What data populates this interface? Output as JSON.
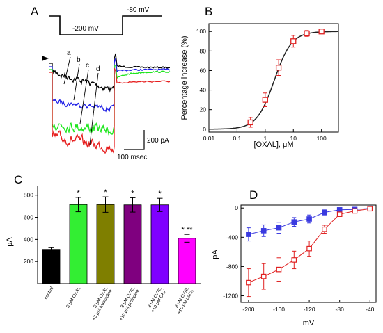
{
  "chart_data": [
    {
      "panel": "A",
      "type": "line",
      "protocol": {
        "step_voltage": "-200 mV",
        "return_voltage": "-80 mV"
      },
      "trace_labels": [
        "a",
        "b",
        "c",
        "d"
      ],
      "scale_bar": {
        "current": "200 pA",
        "time": "100 msec"
      },
      "colors": {
        "a": "#000000",
        "b": "#1e1ee6",
        "c": "#1ee61e",
        "d": "#e61e1e"
      }
    },
    {
      "panel": "B",
      "type": "line",
      "xlabel": "[OXAL], μM",
      "ylabel": "Percentage increase (%)",
      "x_scale": "log",
      "xlim": [
        0.01,
        400
      ],
      "ylim": [
        -3,
        108
      ],
      "xticks": [
        "0.01",
        "0.1",
        "1",
        "10",
        "100"
      ],
      "yticks": [
        0,
        20,
        40,
        60,
        80,
        100
      ],
      "points": [
        {
          "x": 0.3,
          "y": 7,
          "err": 5
        },
        {
          "x": 1,
          "y": 30,
          "err": 7
        },
        {
          "x": 3,
          "y": 63,
          "err": 8
        },
        {
          "x": 10,
          "y": 90,
          "err": 6
        },
        {
          "x": 30,
          "y": 98,
          "err": 3
        },
        {
          "x": 100,
          "y": 100,
          "err": 1
        }
      ],
      "fit": {
        "ec50": 2.1,
        "hill": 1.4,
        "max": 100
      },
      "marker_color": "#e02020"
    },
    {
      "panel": "C",
      "type": "bar",
      "ylabel": "pA",
      "ylim": [
        0,
        880
      ],
      "yticks": [
        200,
        400,
        600,
        800
      ],
      "categories": [
        {
          "lines": [
            "control"
          ],
          "value": 310,
          "err": 15,
          "color": "#000000",
          "sig": ""
        },
        {
          "lines": [
            "3 μM OXAL"
          ],
          "value": 715,
          "err": 65,
          "color": "#33ee33",
          "sig": "*"
        },
        {
          "lines": [
            "3 μM OXAL",
            "+3 μM ivabradine"
          ],
          "value": 715,
          "err": 70,
          "color": "#7f7f00",
          "sig": "*"
        },
        {
          "lines": [
            "3 μM OXAL",
            "+10 μM prolopine"
          ],
          "value": 712,
          "err": 65,
          "color": "#7f007f",
          "sig": "*"
        },
        {
          "lines": [
            "3 μM OXAL",
            "+10 μM DEX"
          ],
          "value": 712,
          "err": 60,
          "color": "#7f00ff",
          "sig": "*"
        },
        {
          "lines": [
            "3 μM OXAL",
            "+10 μM LaCl₃"
          ],
          "value": 410,
          "err": 35,
          "color": "#ff00ff",
          "sig": "* **"
        }
      ]
    },
    {
      "panel": "D",
      "type": "line",
      "xlabel": "mV",
      "ylabel": "pA",
      "xlim": [
        -210,
        -32
      ],
      "ylim": [
        -1290,
        40
      ],
      "xticks": [
        -200,
        -160,
        -120,
        -80,
        -40
      ],
      "yticks": [
        0,
        -400,
        -800,
        -1200
      ],
      "series": [
        {
          "marker": "filled-square",
          "color": "#3a3ae0",
          "x": [
            -200,
            -180,
            -160,
            -140,
            -120,
            -100,
            -80,
            -60,
            -40
          ],
          "y": [
            -360,
            -310,
            -270,
            -190,
            -150,
            -60,
            -25,
            -20,
            -5
          ],
          "err": [
            90,
            80,
            75,
            60,
            55,
            35,
            20,
            15,
            10
          ]
        },
        {
          "marker": "open-square",
          "color": "#e02020",
          "x": [
            -200,
            -180,
            -160,
            -140,
            -120,
            -100,
            -80,
            -60,
            -40
          ],
          "y": [
            -1020,
            -935,
            -840,
            -710,
            -555,
            -290,
            -85,
            -40,
            -10
          ],
          "err": [
            190,
            175,
            160,
            120,
            105,
            55,
            30,
            20,
            10
          ]
        }
      ]
    }
  ]
}
